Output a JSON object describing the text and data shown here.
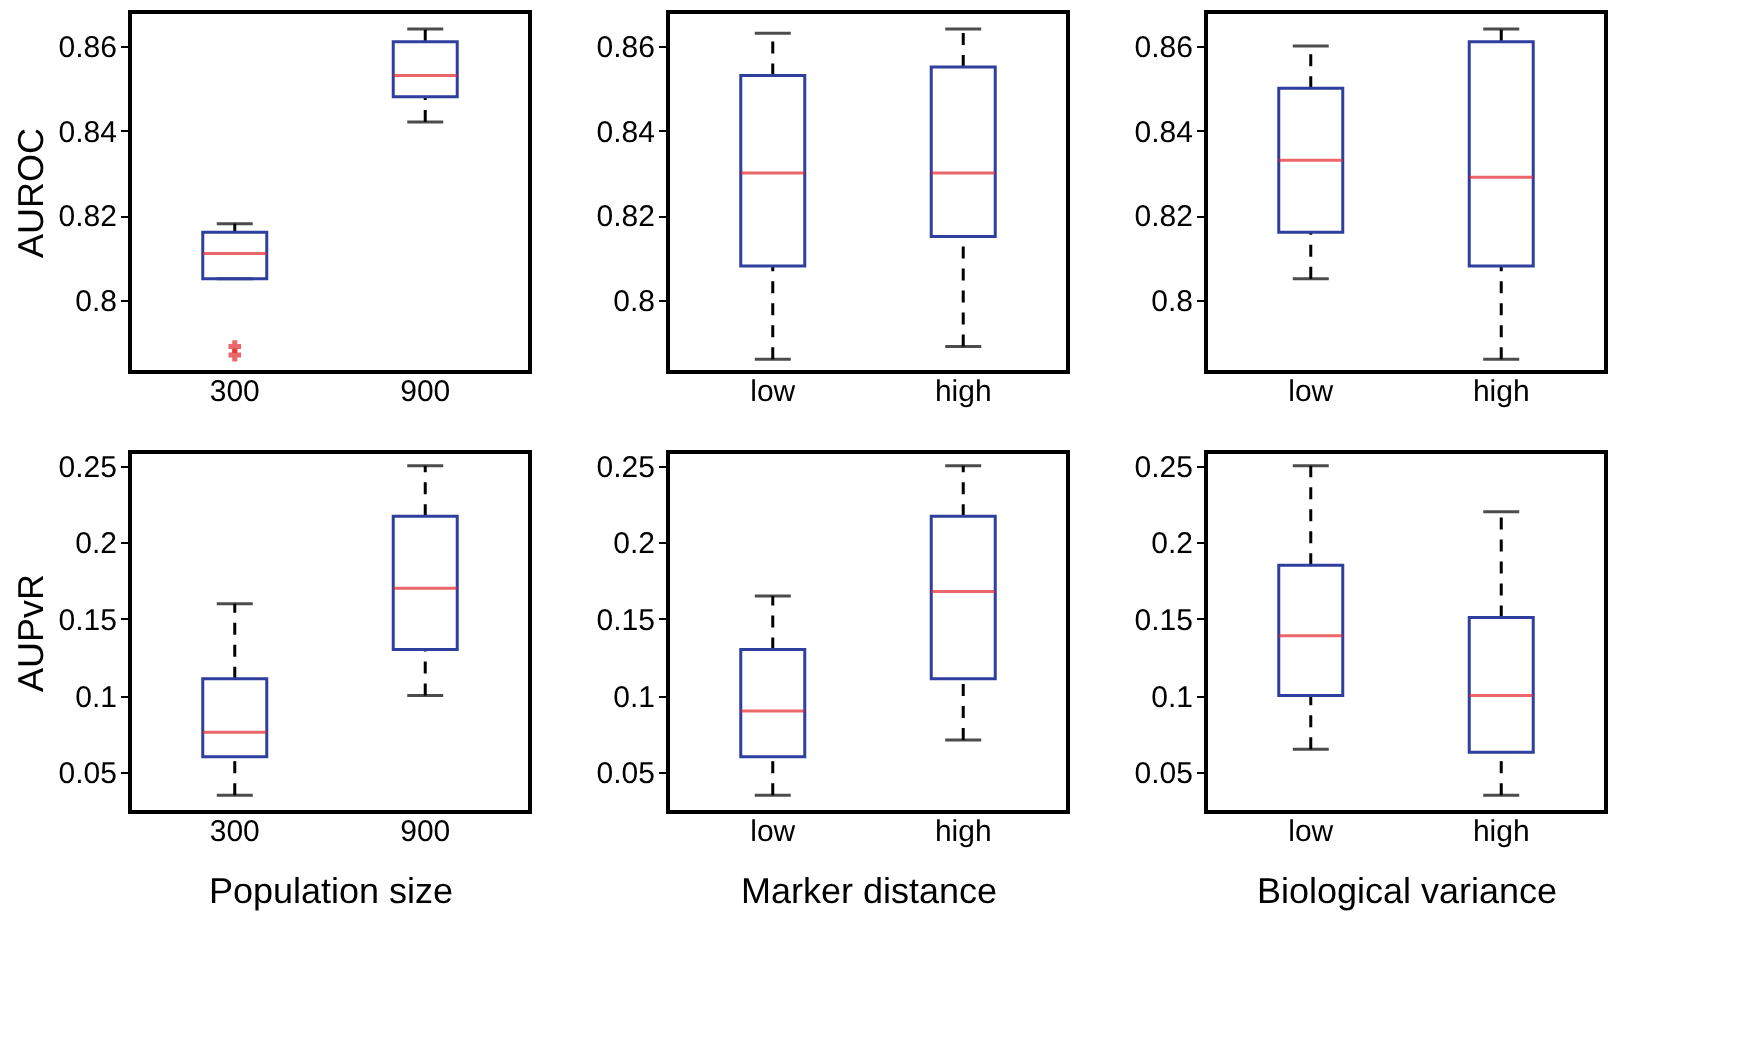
{
  "chart_data": [
    {
      "type": "box",
      "ylabel": "AUROC",
      "categories": [
        "300",
        "900"
      ],
      "ylim": [
        0.783,
        0.868
      ],
      "yticks": [
        0.8,
        0.82,
        0.84,
        0.86
      ],
      "grid": false,
      "line_style": "dashed",
      "series": [
        {
          "boxes": [
            {
              "low": 0.805,
              "q1": 0.805,
              "median": 0.811,
              "q3": 0.816,
              "high": 0.818,
              "outliers": [
                0.789,
                0.787
              ]
            },
            {
              "low": 0.842,
              "q1": 0.848,
              "median": 0.853,
              "q3": 0.861,
              "high": 0.864
            }
          ]
        }
      ]
    },
    {
      "type": "box",
      "categories": [
        "low",
        "high"
      ],
      "ylim": [
        0.783,
        0.868
      ],
      "yticks": [
        0.8,
        0.82,
        0.84,
        0.86
      ],
      "grid": false,
      "line_style": "dashed",
      "series": [
        {
          "boxes": [
            {
              "low": 0.786,
              "q1": 0.808,
              "median": 0.83,
              "q3": 0.853,
              "high": 0.863
            },
            {
              "low": 0.789,
              "q1": 0.815,
              "median": 0.83,
              "q3": 0.855,
              "high": 0.864
            }
          ]
        }
      ]
    },
    {
      "type": "box",
      "categories": [
        "low",
        "high"
      ],
      "ylim": [
        0.783,
        0.868
      ],
      "yticks": [
        0.8,
        0.82,
        0.84,
        0.86
      ],
      "grid": false,
      "line_style": "dashed",
      "series": [
        {
          "boxes": [
            {
              "low": 0.805,
              "q1": 0.816,
              "median": 0.833,
              "q3": 0.85,
              "high": 0.86
            },
            {
              "low": 0.786,
              "q1": 0.808,
              "median": 0.829,
              "q3": 0.861,
              "high": 0.864
            }
          ]
        }
      ]
    },
    {
      "type": "box",
      "ylabel": "AUPvR",
      "xlabel": "Population size",
      "categories": [
        "300",
        "900"
      ],
      "ylim": [
        0.024,
        0.259
      ],
      "yticks": [
        0.05,
        0.1,
        0.15,
        0.2,
        0.25
      ],
      "grid": false,
      "line_style": "dashed",
      "series": [
        {
          "boxes": [
            {
              "low": 0.035,
              "q1": 0.06,
              "median": 0.076,
              "q3": 0.111,
              "high": 0.16
            },
            {
              "low": 0.1,
              "q1": 0.13,
              "median": 0.17,
              "q3": 0.217,
              "high": 0.25
            }
          ]
        }
      ]
    },
    {
      "type": "box",
      "xlabel": "Marker distance",
      "categories": [
        "low",
        "high"
      ],
      "ylim": [
        0.024,
        0.259
      ],
      "yticks": [
        0.05,
        0.1,
        0.15,
        0.2,
        0.25
      ],
      "grid": false,
      "line_style": "dashed",
      "series": [
        {
          "boxes": [
            {
              "low": 0.035,
              "q1": 0.06,
              "median": 0.09,
              "q3": 0.13,
              "high": 0.165
            },
            {
              "low": 0.071,
              "q1": 0.111,
              "median": 0.168,
              "q3": 0.217,
              "high": 0.25
            }
          ]
        }
      ]
    },
    {
      "type": "box",
      "xlabel": "Biological variance",
      "categories": [
        "low",
        "high"
      ],
      "ylim": [
        0.024,
        0.259
      ],
      "yticks": [
        0.05,
        0.1,
        0.15,
        0.2,
        0.25
      ],
      "grid": false,
      "line_style": "dashed",
      "series": [
        {
          "boxes": [
            {
              "low": 0.065,
              "q1": 0.1,
              "median": 0.139,
              "q3": 0.185,
              "high": 0.25
            },
            {
              "low": 0.035,
              "q1": 0.063,
              "median": 0.1,
              "q3": 0.151,
              "high": 0.22
            }
          ]
        }
      ]
    }
  ]
}
